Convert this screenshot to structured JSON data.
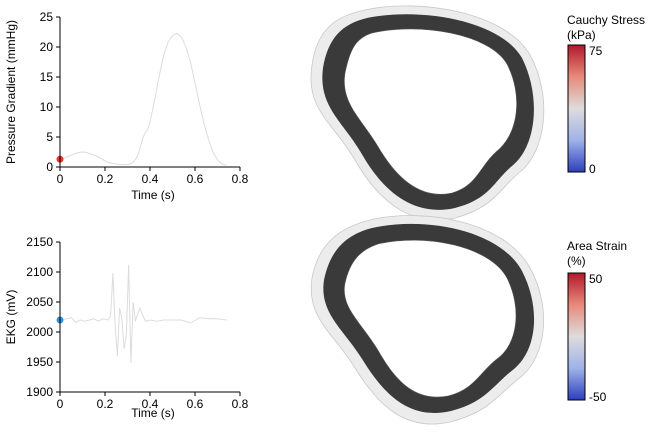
{
  "chart_data": [
    {
      "type": "line",
      "xlabel": "Time (s)",
      "ylabel": "Pressure Gradient (mmHg)",
      "xlim": [
        0,
        0.8
      ],
      "ylim": [
        0,
        25
      ],
      "xticks": [
        "0",
        "0.2",
        "0.4",
        "0.6",
        "0.8"
      ],
      "yticks": [
        "0",
        "5",
        "10",
        "15",
        "20",
        "25"
      ],
      "grid": false,
      "series": [
        {
          "color": "#d9d9d9",
          "x": [
            0.0,
            0.02,
            0.05,
            0.08,
            0.1,
            0.12,
            0.15,
            0.18,
            0.2,
            0.22,
            0.25,
            0.28,
            0.3,
            0.32,
            0.34,
            0.35,
            0.36,
            0.37,
            0.38,
            0.39,
            0.4,
            0.42,
            0.44,
            0.46,
            0.48,
            0.5,
            0.52,
            0.54,
            0.56,
            0.58,
            0.6,
            0.62,
            0.64,
            0.66,
            0.68,
            0.7,
            0.72,
            0.74
          ],
          "y": [
            1.3,
            1.5,
            2.0,
            2.4,
            2.5,
            2.4,
            2.0,
            1.5,
            1.0,
            0.7,
            0.5,
            0.4,
            0.4,
            0.6,
            1.5,
            2.5,
            3.8,
            5.0,
            5.8,
            6.3,
            7.5,
            11.0,
            15.0,
            18.5,
            20.8,
            21.9,
            22.3,
            21.6,
            20.0,
            17.5,
            14.0,
            10.5,
            7.2,
            4.6,
            2.5,
            1.2,
            0.5,
            0.3
          ]
        }
      ],
      "marker": {
        "x": 0.0,
        "y": 1.3,
        "color": "#e8352e"
      }
    },
    {
      "type": "line",
      "xlabel": "Time (s)",
      "ylabel": "EKG (mV)",
      "xlim": [
        0,
        0.8
      ],
      "ylim": [
        1900,
        2150
      ],
      "xticks": [
        "0",
        "0.2",
        "0.4",
        "0.6",
        "0.8"
      ],
      "yticks": [
        "1900",
        "1950",
        "2000",
        "2050",
        "2100",
        "2150"
      ],
      "grid": false,
      "series": [
        {
          "color": "#d9d9d9",
          "x": [
            0.0,
            0.03,
            0.05,
            0.07,
            0.09,
            0.11,
            0.13,
            0.15,
            0.17,
            0.19,
            0.21,
            0.225,
            0.235,
            0.245,
            0.255,
            0.265,
            0.275,
            0.285,
            0.295,
            0.305,
            0.315,
            0.325,
            0.335,
            0.345,
            0.355,
            0.365,
            0.38,
            0.4,
            0.43,
            0.46,
            0.5,
            0.54,
            0.58,
            0.62,
            0.66,
            0.7,
            0.74
          ],
          "y": [
            2020,
            2022,
            2024,
            2016,
            2020,
            2018,
            2020,
            2022,
            2018,
            2022,
            2020,
            2026,
            2098,
            2012,
            1960,
            2040,
            2022,
            1972,
            1996,
            2112,
            1948,
            2050,
            2018,
            2030,
            2040,
            2030,
            2018,
            2020,
            2018,
            2020,
            2020,
            2020,
            2015,
            2024,
            2022,
            2022,
            2020
          ]
        }
      ],
      "marker": {
        "x": 0.0,
        "y": 2020,
        "color": "#3b8fe0"
      }
    }
  ],
  "colorbars": [
    {
      "title_line1": "Cauchy Stress",
      "title_line2": "(kPa)",
      "max_label": "75",
      "min_label": "0"
    },
    {
      "title_line1": "Area Strain",
      "title_line2": "(%)",
      "max_label": "50",
      "min_label": "-50"
    }
  ],
  "colors": {
    "colormap_top": "#b2182b",
    "colormap_mid": "#dcdcdc",
    "colormap_bottom": "#2c3fbd",
    "ring_inner": "#2b2b2b",
    "ring_outer": "#e9e9e9"
  }
}
